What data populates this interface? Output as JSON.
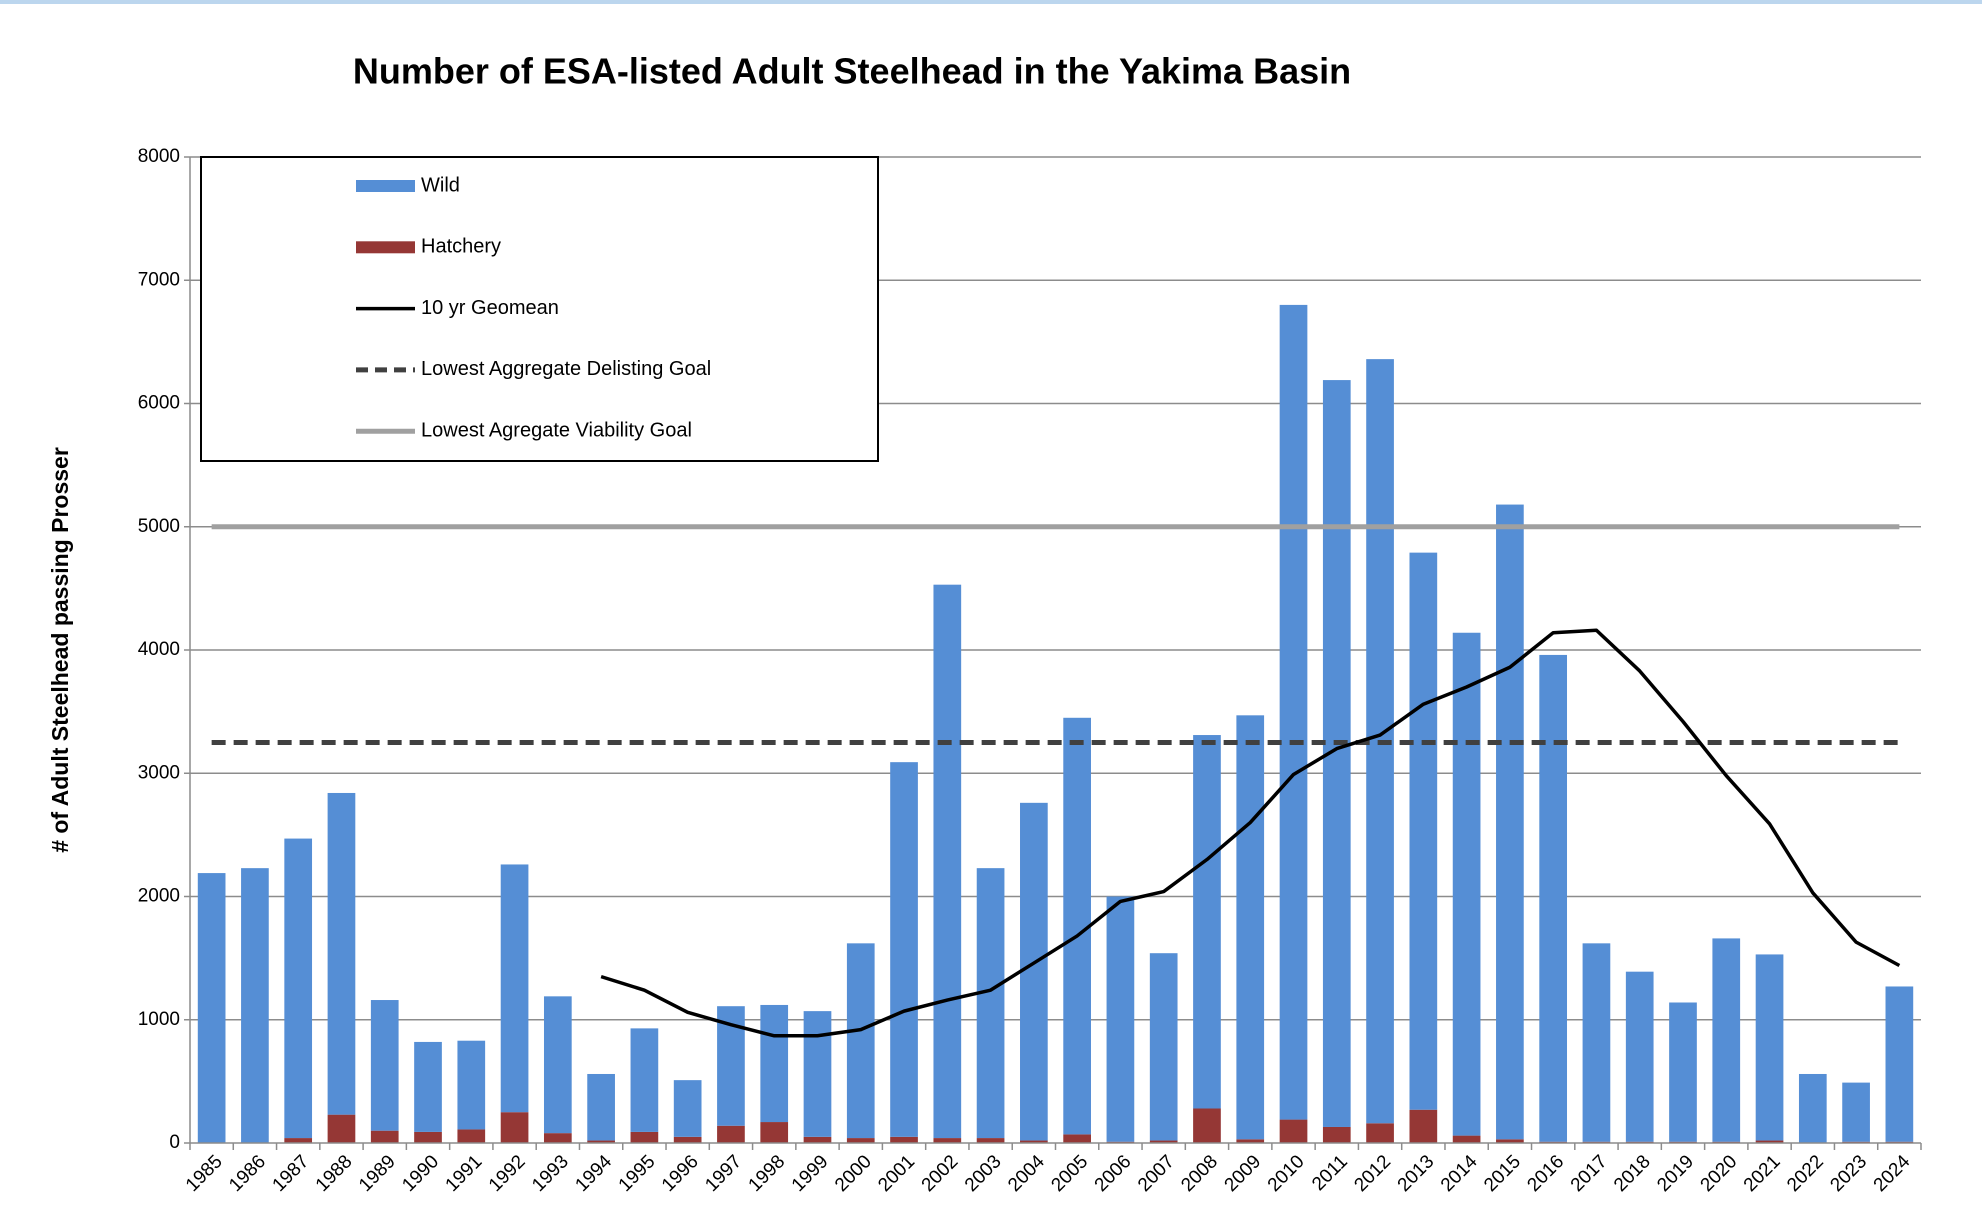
{
  "chart_data": {
    "type": "bar",
    "stacked": true,
    "title": "Number of ESA-listed Adult Steelhead in the Yakima Basin",
    "y_label": "# of Adult Steelhead passing Prosser",
    "categories": [
      "1985",
      "1986",
      "1987",
      "1988",
      "1989",
      "1990",
      "1991",
      "1992",
      "1993",
      "1994",
      "1995",
      "1996",
      "1997",
      "1998",
      "1999",
      "2000",
      "2001",
      "2002",
      "2003",
      "2004",
      "2005",
      "2006",
      "2007",
      "2008",
      "2009",
      "2010",
      "2011",
      "2012",
      "2013",
      "2014",
      "2015",
      "2016",
      "2017",
      "2018",
      "2019",
      "2020",
      "2021",
      "2022",
      "2023",
      "2024"
    ],
    "series": [
      {
        "name": "Wild",
        "color": "#558ed5",
        "values": [
          2190,
          2230,
          2430,
          2610,
          1060,
          730,
          720,
          2010,
          1110,
          540,
          840,
          460,
          970,
          950,
          1020,
          1580,
          3040,
          4490,
          2190,
          2740,
          3380,
          1990,
          1520,
          3030,
          3440,
          6610,
          6060,
          6200,
          4520,
          4080,
          5150,
          3950,
          1610,
          1380,
          1130,
          1650,
          1510,
          560,
          480,
          1260
        ]
      },
      {
        "name": "Hatchery",
        "color": "#953735",
        "values": [
          0,
          0,
          40,
          230,
          100,
          90,
          110,
          250,
          80,
          20,
          90,
          50,
          140,
          170,
          50,
          40,
          50,
          40,
          40,
          20,
          70,
          10,
          20,
          280,
          30,
          190,
          130,
          160,
          270,
          60,
          30,
          10,
          10,
          10,
          10,
          10,
          20,
          0,
          10,
          10
        ]
      },
      {
        "name": "10 yr Geomean",
        "type": "line",
        "color": "#000000",
        "values": [
          null,
          null,
          null,
          null,
          null,
          null,
          null,
          null,
          null,
          1350,
          1240,
          1060,
          960,
          870,
          870,
          920,
          1070,
          1160,
          1240,
          1460,
          1680,
          1960,
          2040,
          2300,
          2600,
          2990,
          3200,
          3310,
          3560,
          3700,
          3860,
          4140,
          4160,
          3830,
          3420,
          2980,
          2590,
          2030,
          1630,
          1440
        ]
      }
    ],
    "reference_lines": [
      {
        "name": "Lowest Aggregate Delisting Goal",
        "value": 3250,
        "color": "#404040",
        "style": "dashed"
      },
      {
        "name": "Lowest Agregate Viability Goal",
        "value": 5000,
        "color": "#a0a0a0",
        "style": "solid"
      }
    ],
    "ylim": [
      0,
      8000
    ],
    "yticks": [
      0,
      1000,
      2000,
      3000,
      4000,
      5000,
      6000,
      7000,
      8000
    ],
    "grid": true,
    "legend": "top-left"
  }
}
